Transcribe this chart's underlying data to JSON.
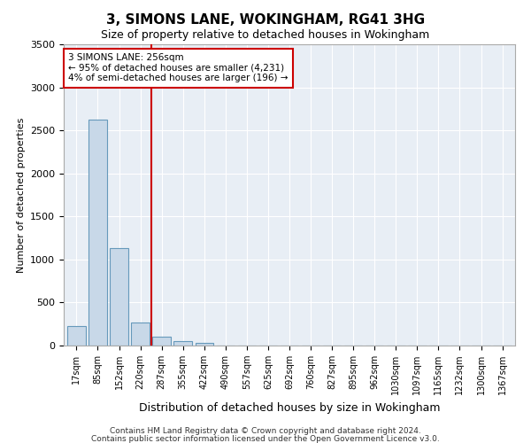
{
  "title": "3, SIMONS LANE, WOKINGHAM, RG41 3HG",
  "subtitle": "Size of property relative to detached houses in Wokingham",
  "xlabel": "Distribution of detached houses by size in Wokingham",
  "ylabel": "Number of detached properties",
  "bar_categories": [
    "17sqm",
    "85sqm",
    "152sqm",
    "220sqm",
    "287sqm",
    "355sqm",
    "422sqm",
    "490sqm",
    "557sqm",
    "625sqm",
    "692sqm",
    "760sqm",
    "827sqm",
    "895sqm",
    "962sqm",
    "1030sqm",
    "1097sqm",
    "1165sqm",
    "1232sqm",
    "1300sqm",
    "1367sqm"
  ],
  "bar_values": [
    230,
    2630,
    1130,
    270,
    100,
    50,
    30,
    0,
    0,
    0,
    0,
    0,
    0,
    0,
    0,
    0,
    0,
    0,
    0,
    0,
    0
  ],
  "bar_color": "#c8d8e8",
  "bar_edge_color": "#6699bb",
  "vline_x": 3.5,
  "vline_color": "#cc0000",
  "ylim": [
    0,
    3500
  ],
  "yticks": [
    0,
    500,
    1000,
    1500,
    2000,
    2500,
    3000,
    3500
  ],
  "annotation_text": "3 SIMONS LANE: 256sqm\n← 95% of detached houses are smaller (4,231)\n4% of semi-detached houses are larger (196) →",
  "annotation_box_color": "#ffffff",
  "annotation_box_edge": "#cc0000",
  "plot_bg_color": "#e8eef5",
  "footer_line1": "Contains HM Land Registry data © Crown copyright and database right 2024.",
  "footer_line2": "Contains public sector information licensed under the Open Government Licence v3.0."
}
